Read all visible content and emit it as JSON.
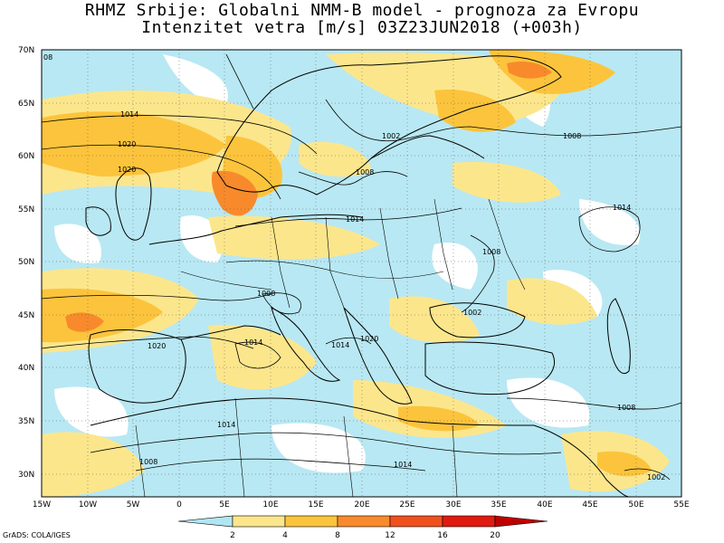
{
  "title_line1": "RHMZ Srbije: Globalni NMM-B model - prognoza za Evropu",
  "title_line2": "Intenzitet vetra [m/s] 03Z23JUN2018 (+003h)",
  "lat_labels": [
    "70N",
    "65N",
    "60N",
    "55N",
    "50N",
    "45N",
    "40N",
    "35N",
    "30N"
  ],
  "lon_labels": [
    "15W",
    "10W",
    "5W",
    "0",
    "5E",
    "10E",
    "15E",
    "20E",
    "25E",
    "30E",
    "35E",
    "40E",
    "45E",
    "50E",
    "55E"
  ],
  "isobar_labels": [
    "08",
    "1014",
    "1020",
    "1020",
    "1002",
    "1008",
    "1008",
    "1014",
    "1014",
    "1008",
    "1002",
    "1008",
    "1014",
    "1020",
    "1020",
    "1014",
    "1014",
    "1008",
    "1008",
    "1014",
    "1002"
  ],
  "colorbar": {
    "ticks": [
      "2",
      "4",
      "8",
      "12",
      "16",
      "20"
    ],
    "colors": [
      "#ffffff",
      "#b0e6f2",
      "#fce68c",
      "#fcc43c",
      "#f88a2c",
      "#f0501e",
      "#e01a10",
      "#c00000"
    ]
  },
  "credit": "GrADS: COLA/IGES",
  "map_colors": {
    "calm": "#ffffff",
    "light": "#b0e6f2",
    "moderate": "#fce68c",
    "fresh": "#fcc43c",
    "strong": "#f88a2c",
    "coast": "#000000",
    "isobar": "#000000"
  }
}
